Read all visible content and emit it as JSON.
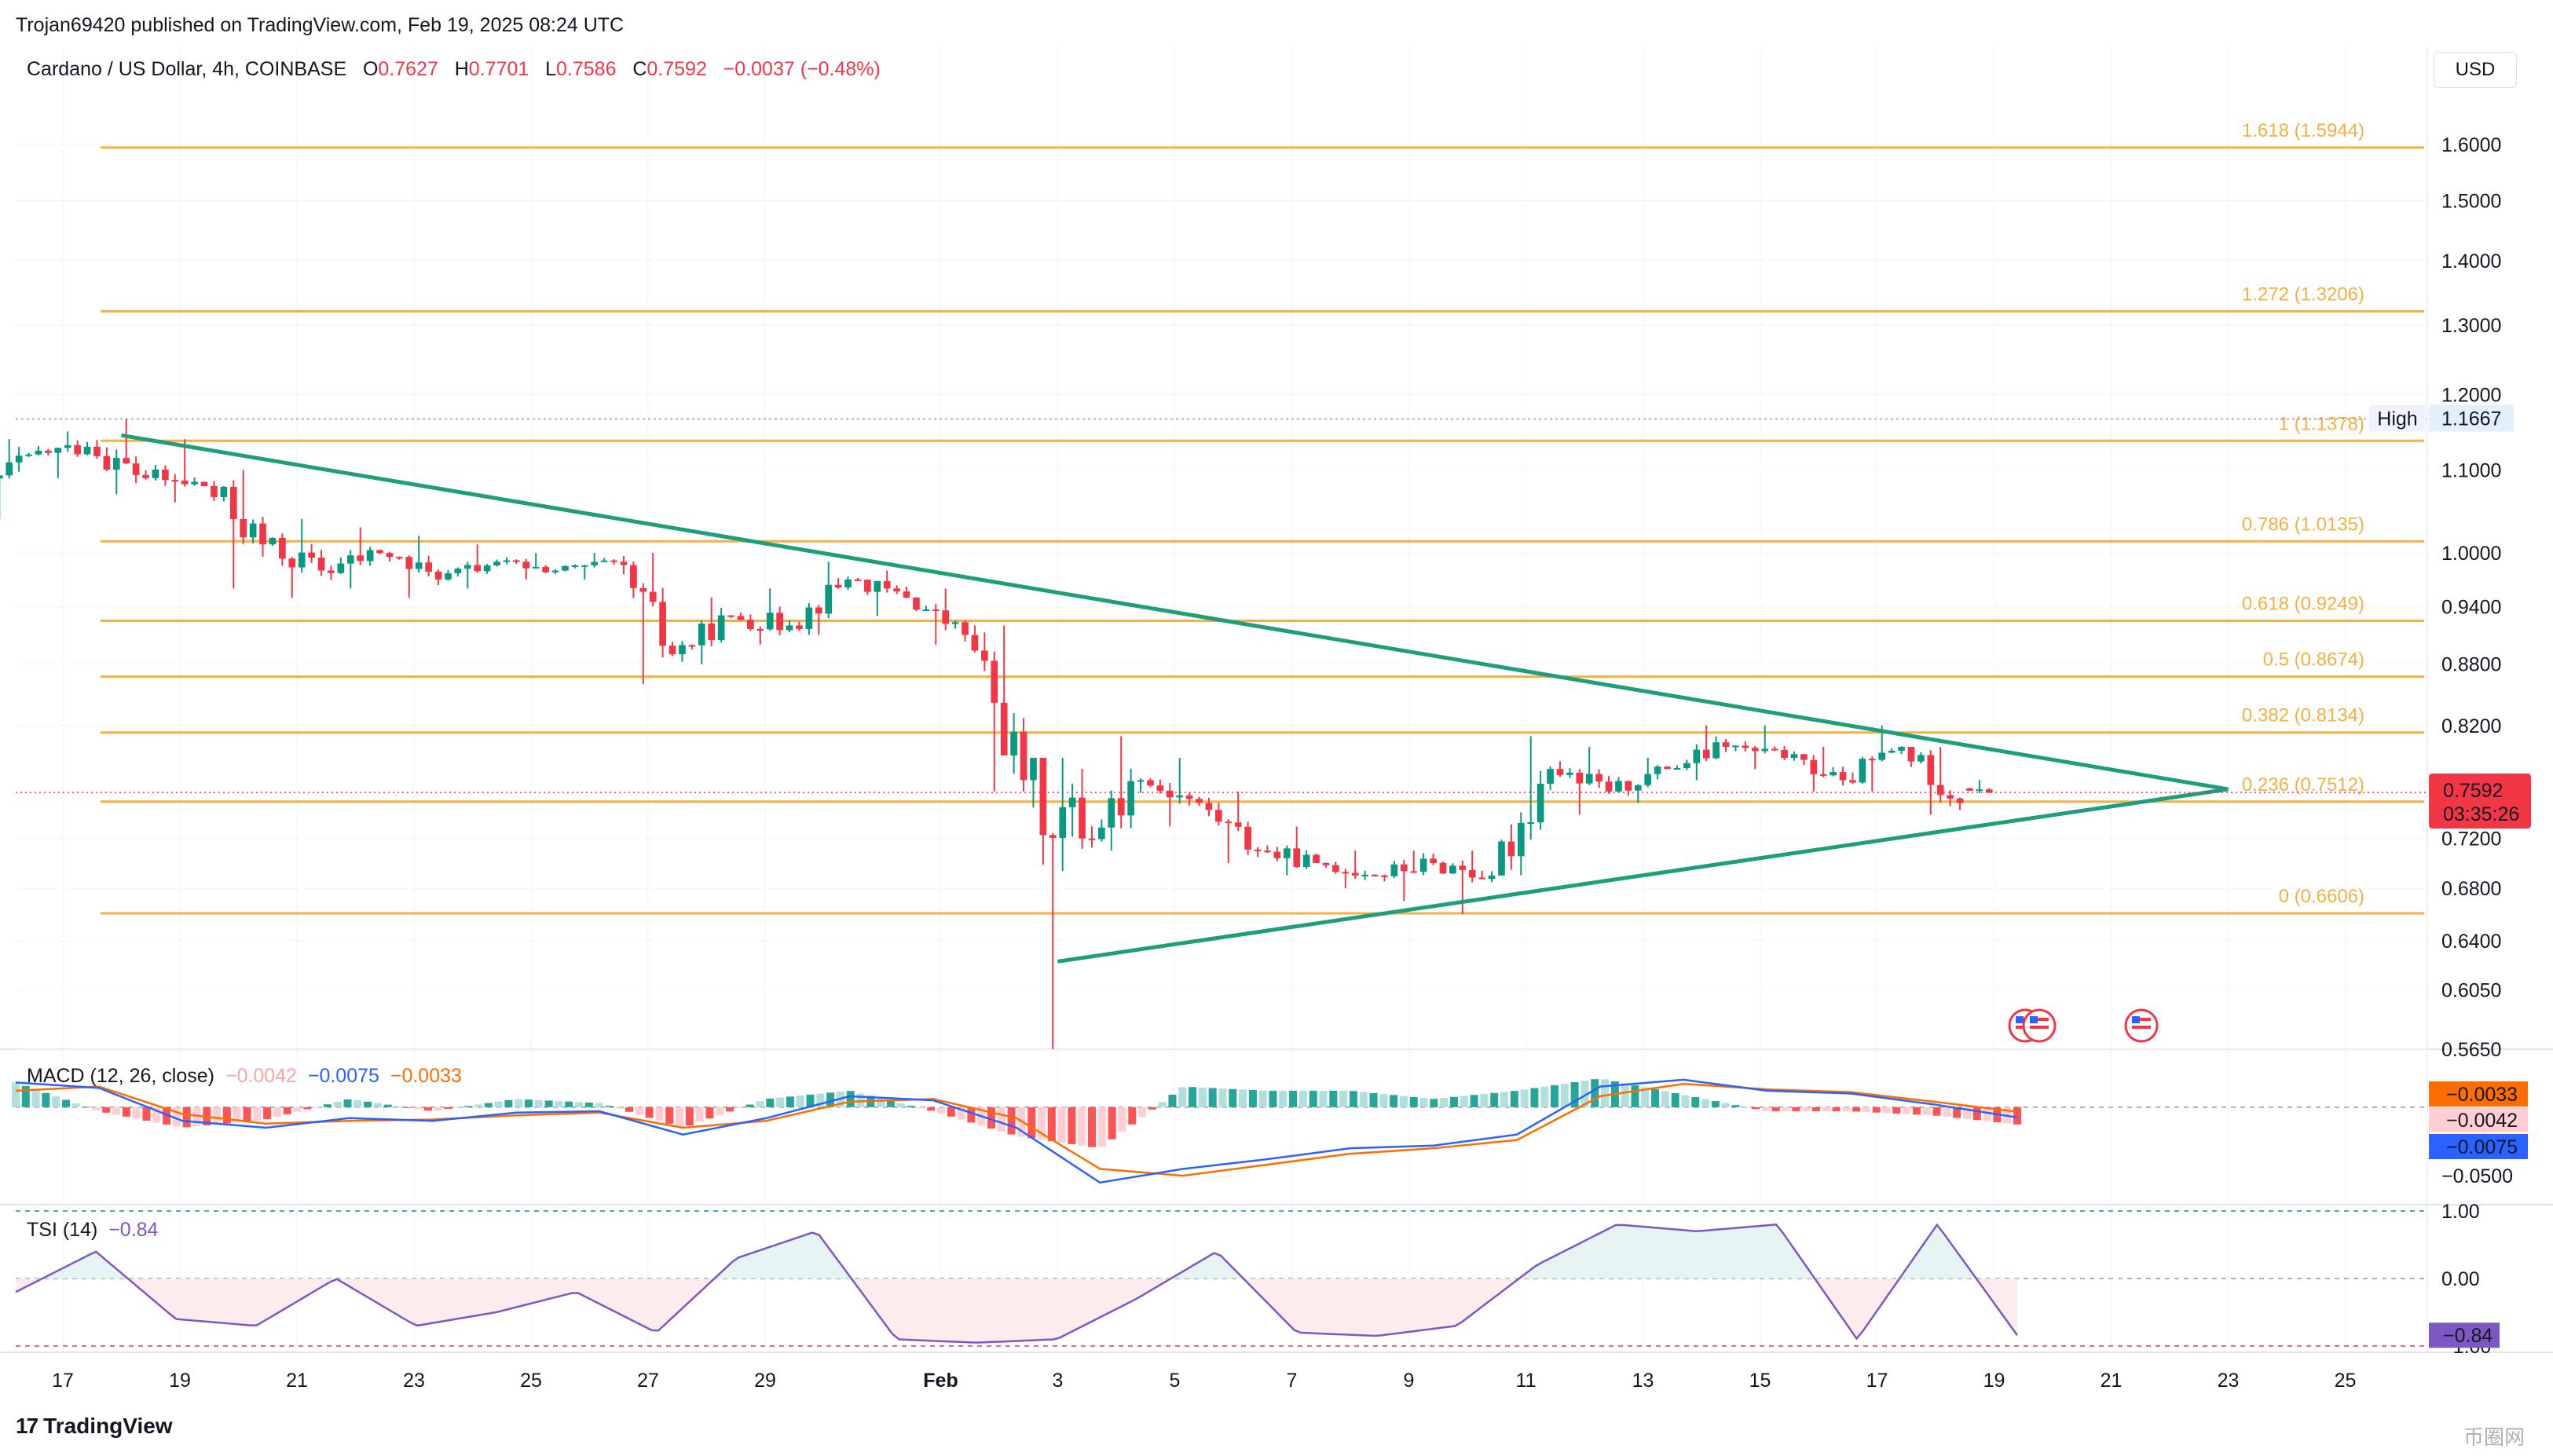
{
  "header": {
    "publisher": "Trojan69420 published on TradingView.com, Feb 19, 2025 08:24 UTC",
    "symbol": "Cardano / US Dollar, 4h, COINBASE",
    "open_label": "O",
    "open": "0.7627",
    "high_label": "H",
    "high": "0.7701",
    "low_label": "L",
    "low": "0.7586",
    "close_label": "C",
    "close": "0.7592",
    "change": "−0.0037 (−0.48%)",
    "currency": "USD"
  },
  "colors": {
    "up": "#089981",
    "down": "#f23645",
    "fib": "#f5b041",
    "trend": "#1e9e7a",
    "macd": "#2962ff",
    "signal": "#ff6d00",
    "tsi": "#7e57c2"
  },
  "chart_data": [
    {
      "type": "candlestick",
      "title": "Cardano / US Dollar, 4h, COINBASE",
      "x_ticks": [
        "17",
        "19",
        "21",
        "23",
        "25",
        "27",
        "29",
        "Feb",
        "3",
        "5",
        "7",
        "9",
        "11",
        "13",
        "15",
        "17",
        "19",
        "21",
        "23",
        "25"
      ],
      "y_ticks": [
        "1.6000",
        "1.5000",
        "1.4000",
        "1.3000",
        "1.2000",
        "1.1000",
        "1.0000",
        "0.9400",
        "0.8800",
        "0.8200",
        "0.7200",
        "0.6800",
        "0.6400",
        "0.6050",
        "0.5650"
      ],
      "y_scale": "log",
      "ylim": [
        0.565,
        1.68
      ],
      "candles_daily": [
        {
          "date": "Jan 16",
          "open": 1.06,
          "high": 1.14,
          "low": 1.04,
          "close": 1.12
        },
        {
          "date": "Jan 17",
          "open": 1.12,
          "high": 1.15,
          "low": 1.09,
          "close": 1.13
        },
        {
          "date": "Jan 18",
          "open": 1.13,
          "high": 1.167,
          "low": 1.07,
          "close": 1.09
        },
        {
          "date": "Jan 19",
          "open": 1.09,
          "high": 1.14,
          "low": 1.06,
          "close": 1.08
        },
        {
          "date": "Jan 20",
          "open": 1.08,
          "high": 1.1,
          "low": 0.96,
          "close": 1.01
        },
        {
          "date": "Jan 21",
          "open": 1.01,
          "high": 1.04,
          "low": 0.95,
          "close": 0.98
        },
        {
          "date": "Jan 22",
          "open": 0.98,
          "high": 1.03,
          "low": 0.96,
          "close": 1.0
        },
        {
          "date": "Jan 23",
          "open": 1.0,
          "high": 1.02,
          "low": 0.95,
          "close": 0.97
        },
        {
          "date": "Jan 24",
          "open": 0.97,
          "high": 1.01,
          "low": 0.96,
          "close": 0.99
        },
        {
          "date": "Jan 25",
          "open": 0.99,
          "high": 1.0,
          "low": 0.97,
          "close": 0.98
        },
        {
          "date": "Jan 26",
          "open": 0.98,
          "high": 1.0,
          "low": 0.97,
          "close": 0.99
        },
        {
          "date": "Jan 27",
          "open": 0.99,
          "high": 1.0,
          "low": 0.86,
          "close": 0.89
        },
        {
          "date": "Jan 28",
          "open": 0.89,
          "high": 0.95,
          "low": 0.88,
          "close": 0.93
        },
        {
          "date": "Jan 29",
          "open": 0.93,
          "high": 0.96,
          "low": 0.9,
          "close": 0.92
        },
        {
          "date": "Jan 30",
          "open": 0.92,
          "high": 0.99,
          "low": 0.91,
          "close": 0.97
        },
        {
          "date": "Jan 31",
          "open": 0.97,
          "high": 0.98,
          "low": 0.93,
          "close": 0.95
        },
        {
          "date": "Feb 1",
          "open": 0.95,
          "high": 0.96,
          "low": 0.9,
          "close": 0.91
        },
        {
          "date": "Feb 2",
          "open": 0.91,
          "high": 0.92,
          "low": 0.76,
          "close": 0.77
        },
        {
          "date": "Feb 3",
          "open": 0.77,
          "high": 0.79,
          "low": 0.565,
          "close": 0.72
        },
        {
          "date": "Feb 4",
          "open": 0.72,
          "high": 0.81,
          "low": 0.71,
          "close": 0.77
        },
        {
          "date": "Feb 5",
          "open": 0.77,
          "high": 0.79,
          "low": 0.73,
          "close": 0.75
        },
        {
          "date": "Feb 6",
          "open": 0.75,
          "high": 0.76,
          "low": 0.7,
          "close": 0.71
        },
        {
          "date": "Feb 7",
          "open": 0.71,
          "high": 0.73,
          "low": 0.69,
          "close": 0.7
        },
        {
          "date": "Feb 8",
          "open": 0.7,
          "high": 0.71,
          "low": 0.68,
          "close": 0.69
        },
        {
          "date": "Feb 9",
          "open": 0.69,
          "high": 0.71,
          "low": 0.67,
          "close": 0.7
        },
        {
          "date": "Feb 10",
          "open": 0.7,
          "high": 0.71,
          "low": 0.66,
          "close": 0.69
        },
        {
          "date": "Feb 11",
          "open": 0.69,
          "high": 0.81,
          "low": 0.69,
          "close": 0.78
        },
        {
          "date": "Feb 12",
          "open": 0.78,
          "high": 0.8,
          "low": 0.74,
          "close": 0.76
        },
        {
          "date": "Feb 13",
          "open": 0.76,
          "high": 0.79,
          "low": 0.75,
          "close": 0.78
        },
        {
          "date": "Feb 14",
          "open": 0.78,
          "high": 0.82,
          "low": 0.77,
          "close": 0.8
        },
        {
          "date": "Feb 15",
          "open": 0.8,
          "high": 0.82,
          "low": 0.78,
          "close": 0.79
        },
        {
          "date": "Feb 16",
          "open": 0.79,
          "high": 0.8,
          "low": 0.76,
          "close": 0.77
        },
        {
          "date": "Feb 17",
          "open": 0.77,
          "high": 0.82,
          "low": 0.76,
          "close": 0.8
        },
        {
          "date": "Feb 18",
          "open": 0.8,
          "high": 0.8,
          "low": 0.74,
          "close": 0.75
        },
        {
          "date": "Feb 19",
          "open": 0.7627,
          "high": 0.7701,
          "low": 0.7586,
          "close": 0.7592
        }
      ],
      "fib_levels": [
        {
          "ratio": "1.618",
          "price": 1.5944,
          "label": "1.618 (1.5944)"
        },
        {
          "ratio": "1.272",
          "price": 1.3206,
          "label": "1.272 (1.3206)"
        },
        {
          "ratio": "1",
          "price": 1.1378,
          "label": "1 (1.1378)"
        },
        {
          "ratio": "0.786",
          "price": 1.0135,
          "label": "0.786 (1.0135)"
        },
        {
          "ratio": "0.618",
          "price": 0.9249,
          "label": "0.618 (0.9249)"
        },
        {
          "ratio": "0.5",
          "price": 0.8674,
          "label": "0.5 (0.8674)"
        },
        {
          "ratio": "0.382",
          "price": 0.8134,
          "label": "0.382 (0.8134)"
        },
        {
          "ratio": "0.236",
          "price": 0.7512,
          "label": "0.236 (0.7512)"
        },
        {
          "ratio": "0",
          "price": 0.6606,
          "label": "0 (0.6606)"
        }
      ],
      "trendlines": [
        {
          "name": "resistance",
          "from": {
            "date": "Jan 18",
            "price": 1.145
          },
          "to": {
            "date": "Feb 23",
            "price": 0.762
          }
        },
        {
          "name": "support",
          "from": {
            "date": "Feb 3",
            "price": 0.625
          },
          "to": {
            "date": "Feb 23",
            "price": 0.762
          }
        }
      ],
      "high_marker": {
        "label": "High",
        "value": "1.1667"
      },
      "last_price": {
        "value": "0.7592",
        "countdown": "03:35:26"
      }
    },
    {
      "type": "histogram+line",
      "title": "MACD (12, 26, close)",
      "legend_values": {
        "histogram": "−0.0042",
        "macd": "−0.0075",
        "signal": "−0.0033"
      },
      "y_ticks": [
        "−0.0500"
      ],
      "price_labels": {
        "signal": "−0.0033",
        "histogram": "−0.0042",
        "macd": "−0.0075"
      },
      "ylim": [
        -0.07,
        0.04
      ],
      "macd_line": [
        0.018,
        0.014,
        -0.01,
        -0.015,
        -0.008,
        -0.01,
        -0.004,
        -0.003,
        -0.02,
        -0.008,
        0.008,
        0.005,
        -0.015,
        -0.055,
        -0.045,
        -0.038,
        -0.03,
        -0.028,
        -0.02,
        0.015,
        0.02,
        0.012,
        0.01,
        0.002,
        -0.0075
      ],
      "signal_line": [
        0.012,
        0.015,
        -0.005,
        -0.012,
        -0.01,
        -0.009,
        -0.006,
        -0.004,
        -0.015,
        -0.01,
        0.004,
        0.006,
        -0.008,
        -0.045,
        -0.05,
        -0.042,
        -0.034,
        -0.03,
        -0.024,
        0.008,
        0.017,
        0.013,
        0.011,
        0.004,
        -0.0033
      ]
    },
    {
      "type": "line",
      "title": "TSI (14)",
      "legend_value": "−0.84",
      "y_ticks": [
        "1.00",
        "0.00",
        "−1.00"
      ],
      "ylim": [
        -1,
        1
      ],
      "tsi": [
        -0.2,
        0.4,
        -0.6,
        -0.7,
        0.0,
        -0.7,
        -0.5,
        -0.2,
        -0.8,
        0.3,
        0.7,
        -0.9,
        -0.95,
        -0.9,
        -0.3,
        0.4,
        -0.8,
        -0.85,
        -0.7,
        0.2,
        0.8,
        0.7,
        0.8,
        -0.9,
        0.8,
        -0.84
      ],
      "last_value_label": "−0.84"
    }
  ],
  "time_axis_labels": [
    "17",
    "19",
    "21",
    "23",
    "25",
    "27",
    "29",
    "Feb",
    "3",
    "5",
    "7",
    "9",
    "11",
    "13",
    "15",
    "17",
    "19",
    "21",
    "23",
    "25"
  ],
  "footer": {
    "logo_text": "TradingView",
    "watermark": "币圈网"
  }
}
